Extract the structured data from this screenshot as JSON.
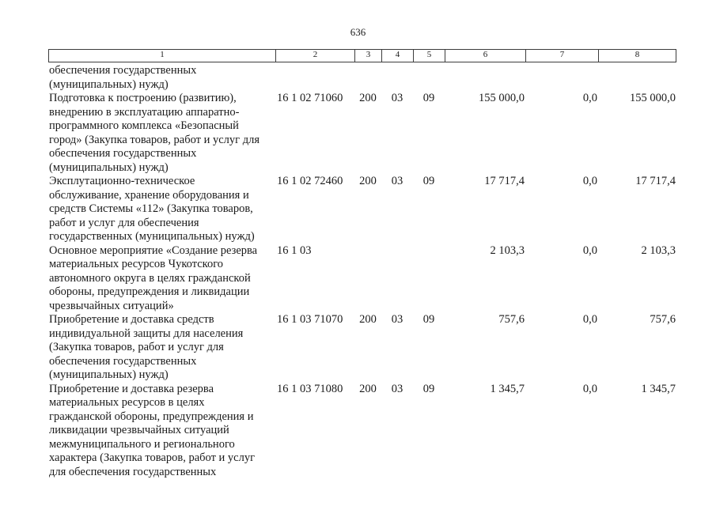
{
  "page_number": "636",
  "table": {
    "header": {
      "cols": [
        "1",
        "2",
        "3",
        "4",
        "5",
        "6",
        "7",
        "8"
      ]
    },
    "rows": [
      {
        "name": "обеспечения государственных\n(муниципальных) нужд)",
        "code": "",
        "expense_type": "",
        "section": "",
        "subsection": "",
        "amount_total": "",
        "amount_federal": "",
        "amount_district": ""
      },
      {
        "name": "Подготовка к построению (развитию),\nвнедрению в эксплуатацию аппаратно-\nпрограммного комплекса «Безопасный\nгород» (Закупка товаров, работ и услуг для\nобеспечения государственных\n(муниципальных) нужд)",
        "code": "16 1 02 71060",
        "expense_type": "200",
        "section": "03",
        "subsection": "09",
        "amount_total": "155 000,0",
        "amount_federal": "0,0",
        "amount_district": "155 000,0"
      },
      {
        "name": "Эксплутационно-техническое\nобслуживание, хранение оборудования и\nсредств Системы «112» (Закупка товаров,\nработ и услуг для обеспечения\nгосударственных (муниципальных) нужд)",
        "code": "16 1 02 72460",
        "expense_type": "200",
        "section": "03",
        "subsection": "09",
        "amount_total": "17 717,4",
        "amount_federal": "0,0",
        "amount_district": "17 717,4"
      },
      {
        "name": "Основное мероприятие «Создание резерва\nматериальных ресурсов Чукотского\nавтономного округа в целях гражданской\nобороны, предупреждения и ликвидации\nчрезвычайных ситуаций»",
        "code": "16 1 03",
        "expense_type": "",
        "section": "",
        "subsection": "",
        "amount_total": "2 103,3",
        "amount_federal": "0,0",
        "amount_district": "2 103,3"
      },
      {
        "name": "Приобретение и доставка средств\nиндивидуальной защиты для населения\n(Закупка товаров, работ и услуг для\nобеспечения государственных\n(муниципальных) нужд)",
        "code": "16 1 03 71070",
        "expense_type": "200",
        "section": "03",
        "subsection": "09",
        "amount_total": "757,6",
        "amount_federal": "0,0",
        "amount_district": "757,6"
      },
      {
        "name": "Приобретение и доставка резерва\nматериальных ресурсов в целях\nгражданской обороны, предупреждения и\nликвидации чрезвычайных ситуаций\nмежмуниципального и регионального\nхарактера (Закупка товаров, работ и услуг\nдля обеспечения государственных",
        "code": "16 1 03 71080",
        "expense_type": "200",
        "section": "03",
        "subsection": "09",
        "amount_total": "1 345,7",
        "amount_federal": "0,0",
        "amount_district": "1 345,7"
      }
    ]
  }
}
